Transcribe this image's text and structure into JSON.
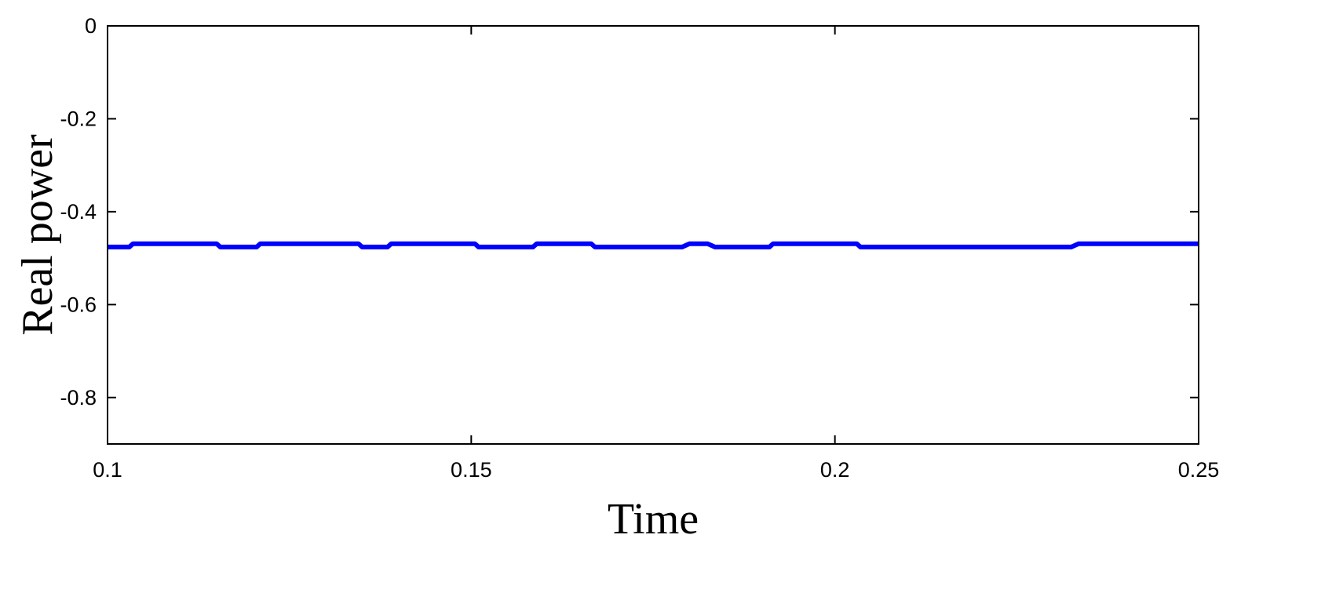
{
  "chart_data": {
    "type": "line",
    "title": "",
    "xlabel": "Time",
    "ylabel": "Real power",
    "xlim": [
      0.1,
      0.25
    ],
    "ylim": [
      -0.9,
      0
    ],
    "xticks": [
      0.1,
      0.15,
      0.2,
      0.25
    ],
    "xtick_labels": [
      "0.1",
      "0.15",
      "0.2",
      "0.25"
    ],
    "yticks": [
      0,
      -0.2,
      -0.4,
      -0.6,
      -0.8
    ],
    "ytick_labels": [
      "0",
      "-0.2",
      "-0.4",
      "-0.6",
      "-0.8"
    ],
    "grid": false,
    "series": [
      {
        "color": "#0000ff",
        "x": [
          0.1,
          0.103,
          0.1035,
          0.115,
          0.1155,
          0.1205,
          0.121,
          0.1345,
          0.135,
          0.1385,
          0.139,
          0.1505,
          0.151,
          0.1585,
          0.159,
          0.1665,
          0.167,
          0.179,
          0.18,
          0.1825,
          0.1835,
          0.1845,
          0.191,
          0.1915,
          0.203,
          0.2035,
          0.2325,
          0.2335,
          0.2345,
          0.25
        ],
        "y": [
          -0.476,
          -0.476,
          -0.469,
          -0.469,
          -0.476,
          -0.476,
          -0.469,
          -0.469,
          -0.476,
          -0.476,
          -0.469,
          -0.469,
          -0.476,
          -0.476,
          -0.469,
          -0.469,
          -0.476,
          -0.476,
          -0.469,
          -0.469,
          -0.476,
          -0.476,
          -0.476,
          -0.469,
          -0.469,
          -0.476,
          -0.476,
          -0.469,
          -0.469,
          -0.469
        ]
      }
    ]
  }
}
